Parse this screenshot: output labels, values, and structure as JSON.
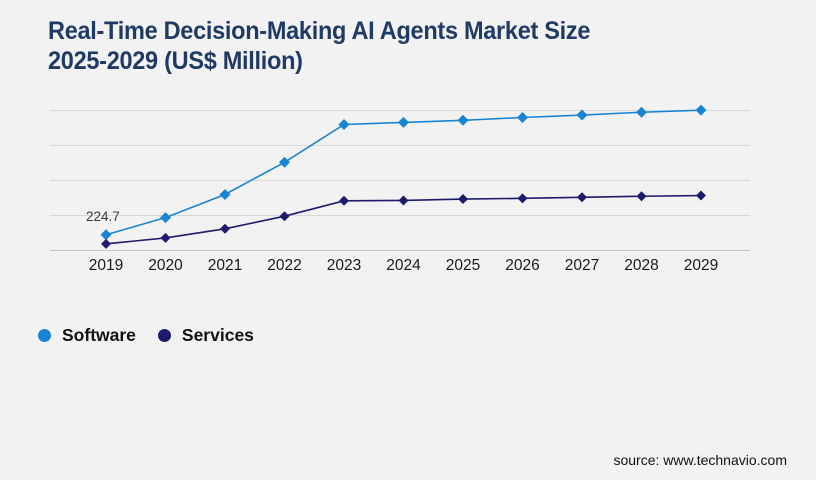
{
  "header": {
    "title_line1": "Real-Time Decision-Making AI Agents Market Size",
    "title_line2": "2025-2029 (US$ Million)"
  },
  "footer": {
    "source": "source: www.technavio.com"
  },
  "colors": {
    "title": "#1f3a64",
    "software": "#1a84d4",
    "services": "#1e1b6d",
    "gridline": "#d8d8da",
    "axis_line": "#c6c6ca",
    "background": "#f2f2f3",
    "label_text": "#1a1a1a"
  },
  "legend": {
    "position": "bottom-left",
    "items": [
      "Software",
      "Services"
    ]
  },
  "chart_data": {
    "type": "line",
    "title": "Real-Time Decision-Making AI Agents Market Size 2025-2029 (US$ Million)",
    "categories": [
      2019,
      2020,
      2021,
      2022,
      2023,
      2024,
      2025,
      2026,
      2027,
      2028,
      2029
    ],
    "series": [
      {
        "name": "Software",
        "color": "#1a84d4",
        "marker": "diamond",
        "values": [
          224.7,
          470,
          800,
          1260,
          1800,
          1830,
          1860,
          1900,
          1935,
          1975,
          2005
        ]
      },
      {
        "name": "Services",
        "color": "#1e1b6d",
        "marker": "diamond",
        "values": [
          95,
          180,
          310,
          490,
          710,
          715,
          735,
          745,
          760,
          775,
          785
        ]
      }
    ],
    "annotation": {
      "series": "Software",
      "category": 2019,
      "label": "224.7"
    },
    "xlabel": "",
    "ylabel": "",
    "ylim": [
      0,
      2000
    ],
    "grid": "horizontal",
    "y_axis_labels_shown": false
  }
}
